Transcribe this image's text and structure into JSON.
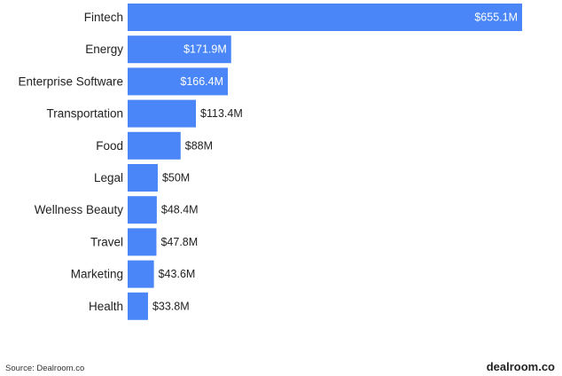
{
  "chart_data": {
    "type": "bar",
    "orientation": "horizontal",
    "title": "",
    "xlabel": "",
    "ylabel": "",
    "categories": [
      "Fintech",
      "Energy",
      "Enterprise Software",
      "Transportation",
      "Food",
      "Legal",
      "Wellness Beauty",
      "Travel",
      "Marketing",
      "Health"
    ],
    "values": [
      655.1,
      171.9,
      166.4,
      113.4,
      88,
      50,
      48.4,
      47.8,
      43.6,
      33.8
    ],
    "value_labels": [
      "$655.1M",
      "$171.9M",
      "$166.4M",
      "$113.4M",
      "$88M",
      "$50M",
      "$48.4M",
      "$47.8M",
      "$43.6M",
      "$33.8M"
    ],
    "unit": "$M",
    "xlim": [
      0,
      655.1
    ],
    "grid": false,
    "legend": "none",
    "bar_color": "#4a86f7"
  },
  "footer": {
    "source": "Source:  Dealroom.co",
    "brand": "dealroom.co"
  }
}
